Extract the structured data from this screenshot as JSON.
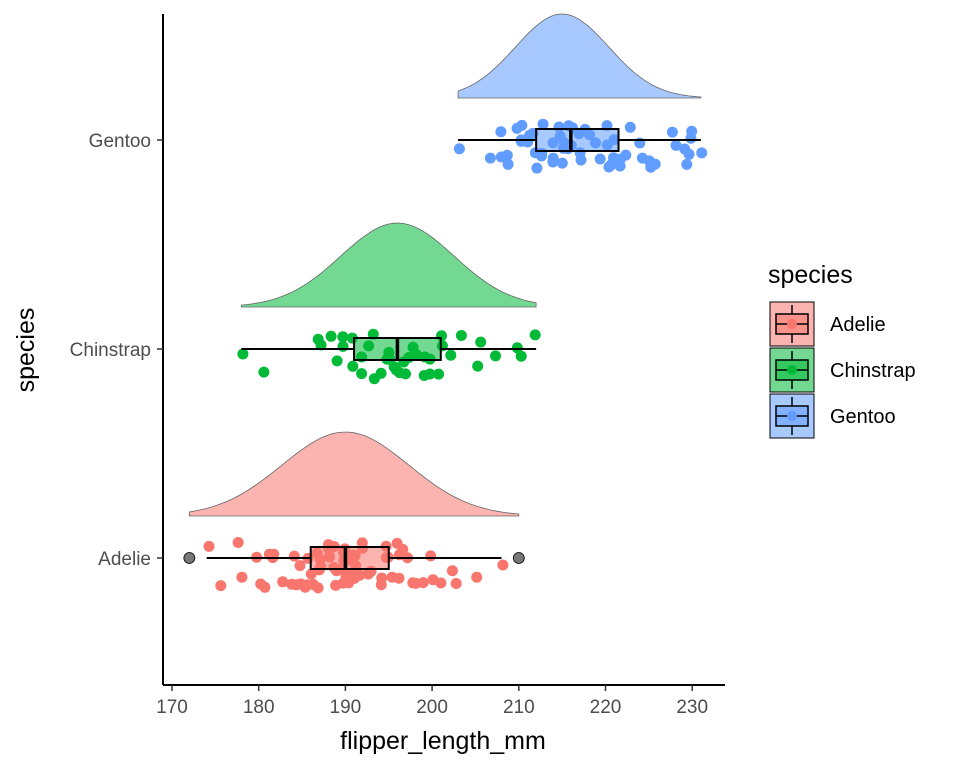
{
  "chart_data": {
    "type": "raincloud",
    "xlabel": "flipper_length_mm",
    "ylabel": "species",
    "xlim": [
      169.5,
      234
    ],
    "xticks": [
      170,
      180,
      190,
      200,
      210,
      220,
      230
    ],
    "categories": [
      "Adelie",
      "Chinstrap",
      "Gentoo"
    ],
    "legend": {
      "title": "species",
      "position": "right",
      "entries": [
        "Adelie",
        "Chinstrap",
        "Gentoo"
      ]
    },
    "colors": {
      "Adelie": "#F8766D",
      "Chinstrap": "#00BA38",
      "Gentoo": "#619CFF",
      "outlier": "#555555"
    },
    "series": [
      {
        "name": "Adelie",
        "box": {
          "whisker_low": 174,
          "q1": 186,
          "median": 190,
          "q3": 195,
          "whisker_high": 208
        },
        "outliers": [
          172,
          210
        ],
        "density_range": [
          172,
          210
        ],
        "density_peak": 190,
        "points": [
          174,
          176,
          178,
          178,
          180,
          180,
          181,
          181,
          182,
          182,
          183,
          184,
          184,
          184,
          185,
          185,
          185,
          186,
          186,
          186,
          186,
          187,
          187,
          187,
          187,
          187,
          188,
          188,
          188,
          188,
          189,
          189,
          189,
          189,
          190,
          190,
          190,
          190,
          190,
          190,
          190,
          190,
          191,
          191,
          191,
          191,
          191,
          191,
          192,
          192,
          192,
          193,
          193,
          193,
          194,
          194,
          195,
          195,
          195,
          195,
          196,
          196,
          196,
          197,
          197,
          198,
          198,
          199,
          200,
          200,
          201,
          202,
          203,
          205,
          208
        ]
      },
      {
        "name": "Chinstrap",
        "box": {
          "whisker_low": 178,
          "q1": 191,
          "median": 196,
          "q3": 201,
          "whisker_high": 212
        },
        "outliers": [],
        "density_range": [
          178,
          212
        ],
        "density_peak": 196,
        "points": [
          178,
          181,
          187,
          187,
          188,
          189,
          190,
          190,
          191,
          191,
          192,
          192,
          193,
          193,
          193,
          194,
          195,
          195,
          195,
          196,
          196,
          196,
          197,
          197,
          197,
          198,
          198,
          199,
          199,
          200,
          200,
          201,
          201,
          201,
          202,
          203,
          205,
          206,
          207,
          210,
          210,
          212
        ]
      },
      {
        "name": "Gentoo",
        "box": {
          "whisker_low": 203,
          "q1": 212,
          "median": 216,
          "q3": 221.5,
          "whisker_high": 231
        },
        "outliers": [],
        "density_range": [
          203,
          231
        ],
        "density_peak": 215,
        "points": [
          203,
          207,
          208,
          208,
          209,
          209,
          210,
          210,
          210,
          210,
          211,
          211,
          212,
          212,
          212,
          213,
          213,
          213,
          214,
          214,
          214,
          215,
          215,
          215,
          215,
          215,
          216,
          216,
          216,
          216,
          217,
          217,
          217,
          218,
          218,
          219,
          219,
          220,
          220,
          220,
          221,
          221,
          221,
          222,
          222,
          222,
          223,
          224,
          224,
          225,
          225,
          226,
          228,
          228,
          229,
          229,
          230,
          230,
          230,
          231
        ]
      }
    ]
  }
}
